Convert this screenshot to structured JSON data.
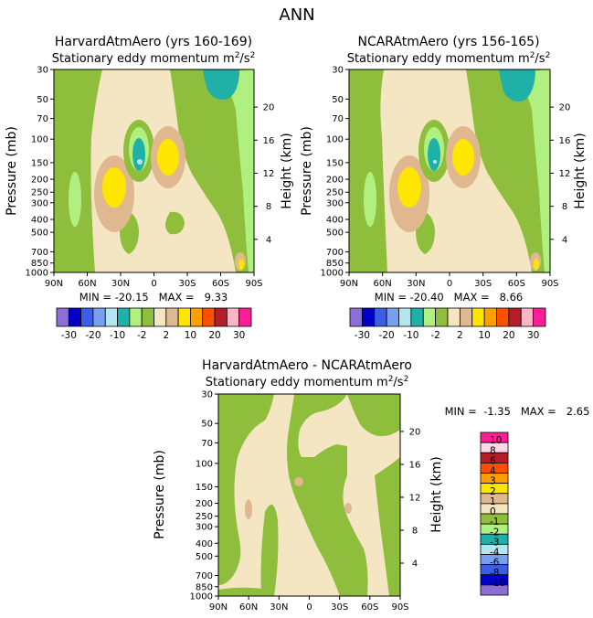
{
  "figure_title": "ANN",
  "colors": {
    "level_colors": [
      "#8c6fd6",
      "#0000c8",
      "#3c5ee6",
      "#78a0f0",
      "#b4e6f0",
      "#1fb0a8",
      "#b0f080",
      "#8ebe3c",
      "#f5e6c3",
      "#e0b890",
      "#ffe600",
      "#ffa000",
      "#ff5000",
      "#b41e28",
      "#ffb4c8",
      "#ff1e96"
    ],
    "diff_colors": [
      "#8c6fd6",
      "#0000c8",
      "#3c5ee6",
      "#78a0f0",
      "#b4e6f0",
      "#1fb0a8",
      "#b0f080",
      "#8ebe3c",
      "#f5e6c3",
      "#e0b890",
      "#ffe600",
      "#ffa000",
      "#ff5000",
      "#b41e28",
      "#ffd6e6",
      "#ff1e96"
    ]
  },
  "chart_data": [
    {
      "type": "heatmap",
      "id": "harvard",
      "title": "HarvardAtmAero (yrs 160-169)",
      "subtitle": "Stationary eddy momentum  m",
      "unit_exp": "2",
      "unit_sep": "/s",
      "ylabel": "Pressure (mb)",
      "y2label": "Height (km)",
      "xticks": [
        "90N",
        "60N",
        "30N",
        "0",
        "30S",
        "60S",
        "90S"
      ],
      "yticks": [
        "30",
        "50",
        "70",
        "100",
        "150",
        "200",
        "250",
        "300",
        "400",
        "500",
        "700",
        "850",
        "1000"
      ],
      "y2ticks": [
        "20",
        "16",
        "12",
        "8",
        "4"
      ],
      "stats": "MIN = -20.15   MAX =   9.33",
      "min": -20.15,
      "max": 9.33
    },
    {
      "type": "heatmap",
      "id": "ncar",
      "title": "NCARAtmAero (yrs 156-165)",
      "subtitle": "Stationary eddy momentum  m",
      "unit_exp": "2",
      "unit_sep": "/s",
      "ylabel": "Pressure (mb)",
      "y2label": "Height (km)",
      "xticks": [
        "90N",
        "60N",
        "30N",
        "0",
        "30S",
        "60S",
        "90S"
      ],
      "yticks": [
        "30",
        "50",
        "70",
        "100",
        "150",
        "200",
        "250",
        "300",
        "400",
        "500",
        "700",
        "850",
        "1000"
      ],
      "y2ticks": [
        "20",
        "16",
        "12",
        "8",
        "4"
      ],
      "stats": "MIN = -20.40   MAX =   8.66",
      "min": -20.4,
      "max": 8.66
    },
    {
      "type": "heatmap",
      "id": "diff",
      "title": "HarvardAtmAero - NCARAtmAero",
      "subtitle": "Stationary eddy momentum  m",
      "unit_exp": "2",
      "unit_sep": "/s",
      "ylabel": "Pressure (mb)",
      "y2label": "Height (km)",
      "xticks": [
        "90N",
        "60N",
        "30N",
        "0",
        "30S",
        "60S",
        "90S"
      ],
      "yticks": [
        "30",
        "50",
        "70",
        "100",
        "150",
        "200",
        "250",
        "300",
        "400",
        "500",
        "700",
        "850",
        "1000"
      ],
      "y2ticks": [
        "20",
        "16",
        "12",
        "8",
        "4"
      ],
      "stats": "MIN =  -1.35   MAX =   2.65",
      "min": -1.35,
      "max": 2.65
    }
  ],
  "colorbar_top": {
    "labels": [
      "-30",
      "-20",
      "-10",
      "-2",
      "2",
      "10",
      "20",
      "30"
    ]
  },
  "colorbar_diff": {
    "labels": [
      "10",
      "8",
      "6",
      "4",
      "3",
      "2",
      "1",
      "0",
      "-1",
      "-2",
      "-3",
      "-4",
      "-6",
      "-8",
      "-10"
    ]
  }
}
